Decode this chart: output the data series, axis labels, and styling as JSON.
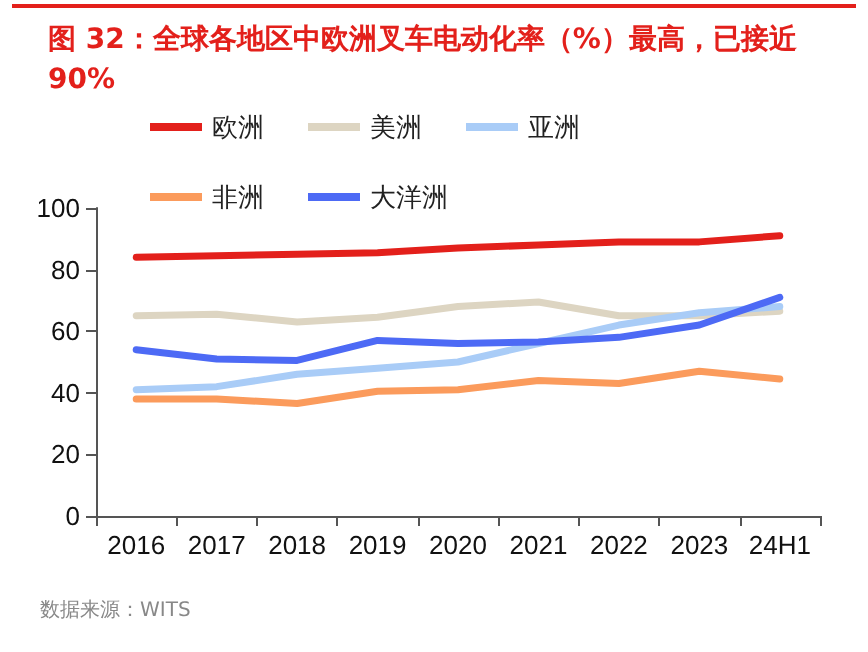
{
  "chart_data": {
    "type": "line",
    "title": "图 32：全球各地区中欧洲叉车电动化率（%）最高，已接近90%",
    "categories": [
      "2016",
      "2017",
      "2018",
      "2019",
      "2020",
      "2021",
      "2022",
      "2023",
      "24H1"
    ],
    "series": [
      {
        "name": "欧洲",
        "color": "#e3201b",
        "values": [
          84,
          84.5,
          85,
          85.5,
          87,
          88,
          89,
          89,
          91
        ]
      },
      {
        "name": "美洲",
        "color": "#ddd5c2",
        "values": [
          65,
          65.5,
          63,
          64.5,
          68,
          69.5,
          65,
          65,
          66.5
        ]
      },
      {
        "name": "亚洲",
        "color": "#a9ccf7",
        "values": [
          41,
          42,
          46,
          48,
          50,
          56,
          62,
          66,
          68
        ]
      },
      {
        "name": "非洲",
        "color": "#fb9b5c",
        "values": [
          38,
          38,
          36.5,
          40.5,
          41,
          44,
          43,
          47,
          44.5
        ]
      },
      {
        "name": "大洋洲",
        "color": "#4d6af5",
        "values": [
          54,
          51,
          50.5,
          57,
          56,
          56.5,
          58,
          62,
          71
        ]
      }
    ],
    "ylim": [
      0,
      100
    ],
    "yticks": [
      0,
      20,
      40,
      60,
      80,
      100
    ],
    "grid": false,
    "legend": "top",
    "marker": "none",
    "line_style": "solid",
    "annotations": [
      "数据来源：WITS"
    ]
  }
}
